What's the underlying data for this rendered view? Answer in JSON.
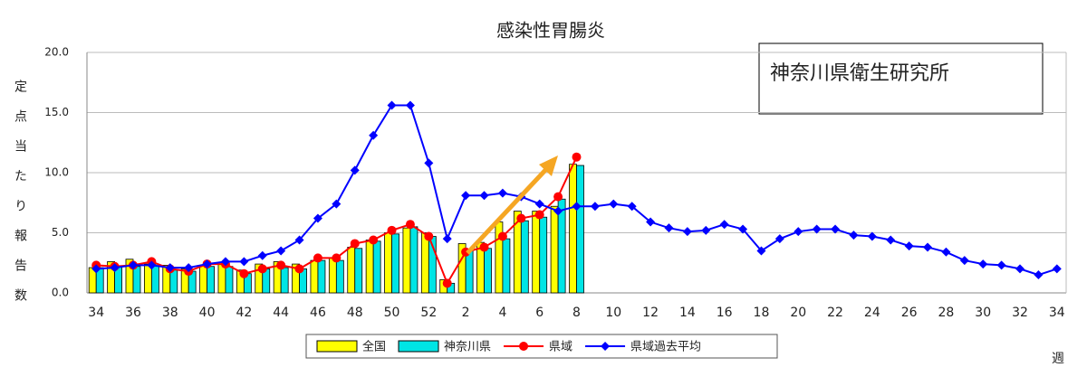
{
  "chart_data": {
    "type": "bar_line",
    "title": "感染性胃腸炎",
    "y_label": "定点当たり報告数",
    "x_label": "週",
    "annotation": "神奈川県衛生研究所",
    "categories": [
      "34",
      null,
      "36",
      null,
      "38",
      null,
      "40",
      null,
      "42",
      null,
      "44",
      null,
      "46",
      null,
      "48",
      null,
      "50",
      null,
      "52",
      null,
      "2",
      null,
      "4",
      null,
      "6",
      null,
      "8",
      null,
      "10",
      null,
      "12",
      null,
      "14",
      null,
      "16",
      null,
      "18",
      null,
      "20",
      null,
      "22",
      null,
      "24",
      null,
      "26",
      null,
      "28",
      null,
      "30",
      null,
      "32",
      null,
      "34"
    ],
    "series": [
      {
        "name": "全国",
        "kind": "bar",
        "color": "#ffff00",
        "values": [
          2.1,
          2.6,
          2.8,
          2.4,
          2.3,
          2.0,
          2.3,
          2.4,
          1.9,
          2.4,
          2.6,
          2.4,
          2.7,
          2.9,
          3.8,
          4.4,
          5.0,
          5.4,
          5.0,
          1.1,
          4.1,
          4.2,
          5.9,
          6.8,
          6.8,
          7.2,
          10.7,
          null,
          null,
          null,
          null,
          null,
          null,
          null,
          null,
          null,
          null,
          null,
          null,
          null,
          null,
          null,
          null,
          null,
          null,
          null,
          null,
          null,
          null,
          null,
          null,
          null,
          null
        ]
      },
      {
        "name": "神奈川県",
        "kind": "bar",
        "color": "#00e5e5",
        "values": [
          2.1,
          2.2,
          2.2,
          2.4,
          1.9,
          1.8,
          2.2,
          2.2,
          1.6,
          2.0,
          2.1,
          2.0,
          2.7,
          2.7,
          3.7,
          4.3,
          4.9,
          5.5,
          4.7,
          0.8,
          3.5,
          3.7,
          4.5,
          6.0,
          6.3,
          7.8,
          10.6,
          null,
          null,
          null,
          null,
          null,
          null,
          null,
          null,
          null,
          null,
          null,
          null,
          null,
          null,
          null,
          null,
          null,
          null,
          null,
          null,
          null,
          null,
          null,
          null,
          null,
          null
        ]
      },
      {
        "name": "県域",
        "kind": "line",
        "color": "#ff0000",
        "values": [
          2.3,
          2.2,
          2.3,
          2.6,
          2.0,
          1.8,
          2.4,
          2.4,
          1.6,
          2.0,
          2.3,
          2.0,
          2.9,
          2.9,
          4.1,
          4.4,
          5.2,
          5.7,
          4.7,
          0.8,
          3.4,
          3.8,
          4.7,
          6.2,
          6.5,
          8.0,
          11.3,
          null,
          null,
          null,
          null,
          null,
          null,
          null,
          null,
          null,
          null,
          null,
          null,
          null,
          null,
          null,
          null,
          null,
          null,
          null,
          null,
          null,
          null,
          null,
          null,
          null,
          null
        ]
      },
      {
        "name": "県域過去平均",
        "kind": "line",
        "color": "#0000ff",
        "values": [
          2.0,
          2.1,
          2.3,
          2.3,
          2.1,
          2.1,
          2.4,
          2.6,
          2.6,
          3.1,
          3.5,
          4.4,
          6.2,
          7.4,
          10.2,
          13.1,
          15.6,
          15.6,
          10.8,
          4.5,
          8.1,
          8.1,
          8.3,
          8.0,
          7.4,
          6.8,
          7.2,
          7.2,
          7.4,
          7.2,
          5.9,
          5.4,
          5.1,
          5.2,
          5.7,
          5.3,
          3.5,
          4.5,
          5.1,
          5.3,
          5.3,
          4.8,
          4.7,
          4.4,
          3.9,
          3.8,
          3.4,
          2.7,
          2.4,
          2.3,
          2.0,
          1.5,
          2.0
        ]
      }
    ],
    "ylim": [
      0,
      20
    ],
    "yticks": [
      {
        "value": 0,
        "label": "0.0"
      },
      {
        "value": 5,
        "label": "5.0"
      },
      {
        "value": 10,
        "label": "10.0"
      },
      {
        "value": 15,
        "label": "15.0"
      },
      {
        "value": 20,
        "label": "20.0"
      }
    ],
    "grid": true,
    "legend": "bottom"
  }
}
